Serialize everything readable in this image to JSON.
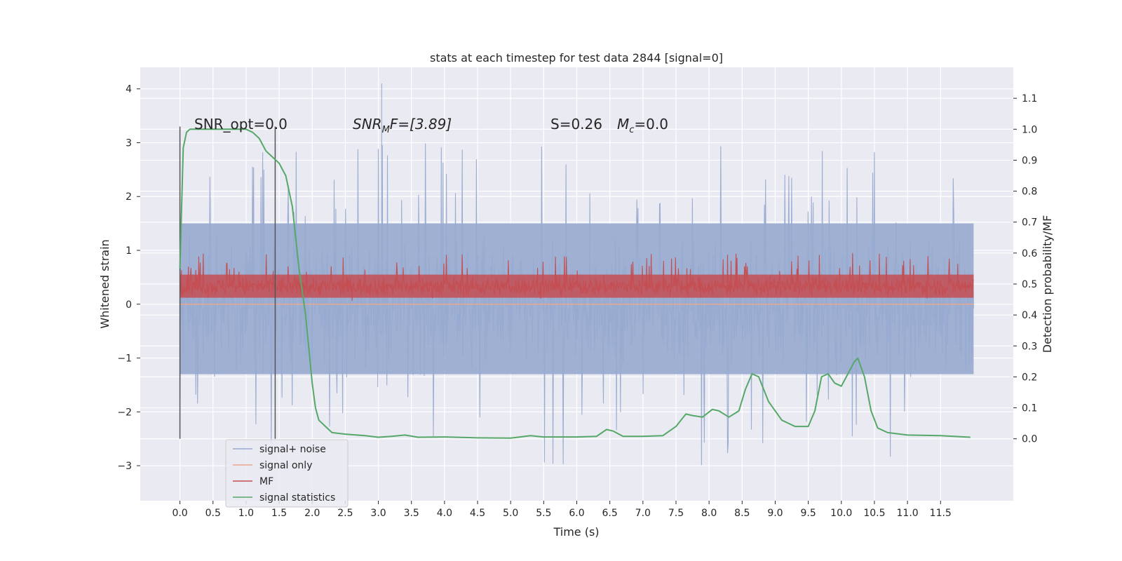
{
  "chart_data": {
    "type": "line",
    "title": "stats at each timestep for test data 2844 [signal=0]",
    "xlabel": "Time (s)",
    "ylabel_left": "Whitened strain",
    "ylabel_right": "Detection probability/MF",
    "xlim": [
      -0.6,
      12.6
    ],
    "ylim_left": [
      -3.65,
      4.4
    ],
    "ylim_right": [
      -0.2,
      1.2
    ],
    "x_ticks": [
      "0.0",
      "0.5",
      "1.0",
      "1.5",
      "2.0",
      "2.5",
      "3.0",
      "3.5",
      "4.0",
      "4.5",
      "5.0",
      "5.5",
      "6.0",
      "6.5",
      "7.0",
      "7.5",
      "8.0",
      "8.5",
      "9.0",
      "9.5",
      "10.0",
      "10.5",
      "11.0",
      "11.5"
    ],
    "y_ticks_left": [
      "−3",
      "−2",
      "−1",
      "0",
      "1",
      "2",
      "3",
      "4"
    ],
    "y_ticks_right": [
      "0.0",
      "0.1",
      "0.2",
      "0.3",
      "0.4",
      "0.5",
      "0.6",
      "0.7",
      "0.8",
      "0.9",
      "1.0",
      "1.1"
    ],
    "grid": true,
    "legend_position": "lower-left",
    "annotations": {
      "snr_opt": "SNR_opt=0.0",
      "snr_mf_prefix": "SNR",
      "snr_mf_sub": "M",
      "snr_mf_suffix": "F=[3.89]",
      "s_value": "S=0.26",
      "mc_prefix": "M",
      "mc_sub": "c",
      "mc_suffix": "=0.0"
    },
    "vlines": [
      0.0,
      1.44
    ],
    "series": [
      {
        "name": "signal+ noise",
        "color": "#97aacf",
        "axis": "left",
        "summary": {
          "x_range": [
            0,
            12
          ],
          "band_low": -1.3,
          "band_high": 1.5,
          "min": -3.25,
          "max": 4.1
        }
      },
      {
        "name": "signal only",
        "color": "#e9a78c",
        "axis": "left",
        "values_const": 0.0
      },
      {
        "name": "MF",
        "color": "#c44e52",
        "axis": "left",
        "summary": {
          "x_range": [
            0,
            12
          ],
          "band_low": 0.05,
          "band_high": 0.65,
          "max": 0.97
        }
      },
      {
        "name": "signal statistics",
        "color": "#55a868",
        "axis": "right",
        "x": [
          0.0,
          0.05,
          0.1,
          0.15,
          0.2,
          0.3,
          0.5,
          0.8,
          1.0,
          1.1,
          1.2,
          1.3,
          1.4,
          1.5,
          1.6,
          1.7,
          1.8,
          1.9,
          2.0,
          2.05,
          2.1,
          2.2,
          2.3,
          2.5,
          2.8,
          3.0,
          3.2,
          3.4,
          3.6,
          4.0,
          4.5,
          5.0,
          5.3,
          5.5,
          6.0,
          6.3,
          6.45,
          6.55,
          6.7,
          7.0,
          7.3,
          7.5,
          7.65,
          7.75,
          7.9,
          8.05,
          8.15,
          8.3,
          8.45,
          8.55,
          8.65,
          8.75,
          8.9,
          9.1,
          9.3,
          9.5,
          9.6,
          9.7,
          9.8,
          9.9,
          10.0,
          10.1,
          10.2,
          10.25,
          10.35,
          10.45,
          10.55,
          10.7,
          11.0,
          11.5,
          11.95
        ],
        "y": [
          0.55,
          0.94,
          0.99,
          1.0,
          1.0,
          1.0,
          1.0,
          1.0,
          1.0,
          0.99,
          0.97,
          0.93,
          0.91,
          0.89,
          0.85,
          0.75,
          0.55,
          0.4,
          0.18,
          0.1,
          0.06,
          0.04,
          0.02,
          0.015,
          0.01,
          0.005,
          0.008,
          0.012,
          0.005,
          0.006,
          0.003,
          0.002,
          0.01,
          0.006,
          0.006,
          0.008,
          0.03,
          0.025,
          0.008,
          0.008,
          0.01,
          0.04,
          0.08,
          0.075,
          0.07,
          0.095,
          0.09,
          0.07,
          0.09,
          0.16,
          0.21,
          0.2,
          0.12,
          0.06,
          0.04,
          0.04,
          0.09,
          0.2,
          0.21,
          0.18,
          0.17,
          0.21,
          0.25,
          0.26,
          0.2,
          0.09,
          0.035,
          0.02,
          0.012,
          0.01,
          0.005
        ]
      }
    ]
  }
}
